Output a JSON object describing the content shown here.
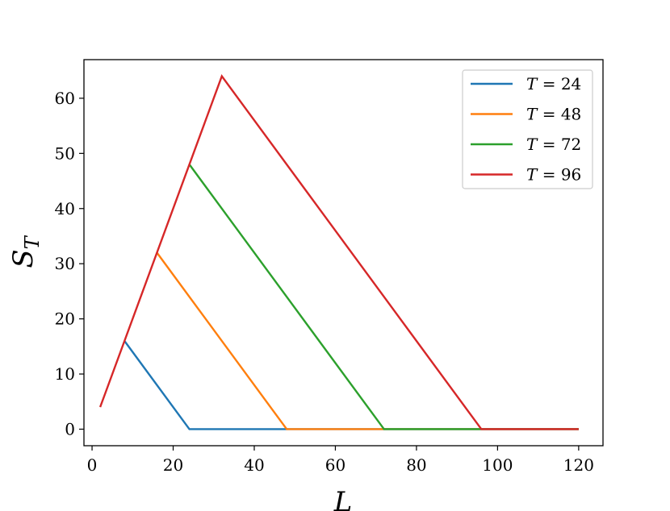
{
  "chart_data": {
    "type": "line",
    "title": "",
    "xlabel": "L",
    "ylabel_base": "S",
    "ylabel_sub": "T",
    "xlim": [
      -2,
      126
    ],
    "ylim": [
      -3,
      67
    ],
    "x_ticks": [
      0,
      20,
      40,
      60,
      80,
      100,
      120
    ],
    "y_ticks": [
      0,
      10,
      20,
      30,
      40,
      50,
      60
    ],
    "grid": false,
    "legend_position": "top-right",
    "series": [
      {
        "name": "T = 24",
        "var": "T",
        "value": "24",
        "color": "#1f77b4",
        "points": [
          [
            8,
            16
          ],
          [
            24,
            0
          ],
          [
            120,
            0
          ]
        ]
      },
      {
        "name": "T = 48",
        "var": "T",
        "value": "48",
        "color": "#ff7f0e",
        "points": [
          [
            16,
            32
          ],
          [
            48,
            0
          ],
          [
            120,
            0
          ]
        ]
      },
      {
        "name": "T = 72",
        "var": "T",
        "value": "72",
        "color": "#2ca02c",
        "points": [
          [
            24,
            48
          ],
          [
            72,
            0
          ],
          [
            120,
            0
          ]
        ]
      },
      {
        "name": "T = 96",
        "var": "T",
        "value": "96",
        "color": "#d62728",
        "points": [
          [
            2,
            4
          ],
          [
            32,
            64
          ],
          [
            96,
            0
          ],
          [
            120,
            0
          ]
        ]
      }
    ]
  }
}
